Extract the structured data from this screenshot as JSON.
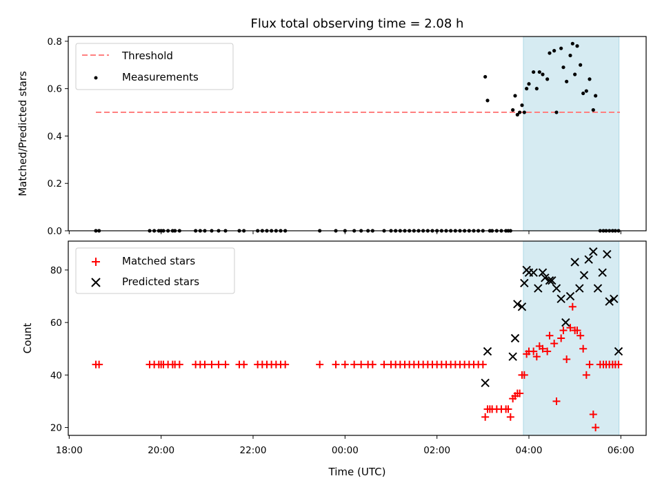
{
  "chart_data": [
    {
      "type": "scatter",
      "title": "Flux total observing time = 2.08 h",
      "xlabel": "",
      "ylabel": "Matched/Predicted stars",
      "ylim": [
        0,
        0.82
      ],
      "yticks": [
        0.0,
        0.2,
        0.4,
        0.6,
        0.8
      ],
      "ytick_labels": [
        "0.0",
        "0.2",
        "0.4",
        "0.6",
        "0.8"
      ],
      "shaded_span_hours": [
        27.88,
        29.96
      ],
      "shade_color": "#add8e6",
      "legend_position": "upper-left",
      "threshold": {
        "name": "Threshold",
        "value": 0.5,
        "x_range": [
          18.58,
          29.98
        ],
        "color": "#ff7f7f",
        "style": "dashed"
      },
      "series": [
        {
          "name": "Measurements",
          "marker": "dot",
          "color": "#000000",
          "x": [
            18.58,
            18.65,
            19.75,
            19.85,
            19.95,
            20.0,
            20.05,
            20.15,
            20.25,
            20.3,
            20.4,
            20.75,
            20.85,
            20.95,
            21.1,
            21.25,
            21.4,
            21.7,
            21.8,
            22.1,
            22.2,
            22.3,
            22.4,
            22.5,
            22.6,
            22.7,
            23.45,
            23.8,
            24.0,
            24.2,
            24.35,
            24.5,
            24.6,
            24.85,
            25.0,
            25.1,
            25.2,
            25.3,
            25.4,
            25.5,
            25.6,
            25.7,
            25.8,
            25.9,
            26.0,
            26.1,
            26.2,
            26.3,
            26.4,
            26.5,
            26.6,
            26.7,
            26.8,
            26.9,
            27.0,
            27.05,
            27.1,
            27.15,
            27.2,
            27.3,
            27.4,
            27.5,
            27.55,
            27.6,
            27.65,
            27.7,
            27.75,
            27.8,
            27.85,
            27.9,
            27.95,
            28.0,
            28.1,
            28.17,
            28.23,
            28.3,
            28.4,
            28.45,
            28.55,
            28.6,
            28.7,
            28.75,
            28.82,
            28.9,
            28.95,
            29.0,
            29.05,
            29.12,
            29.18,
            29.25,
            29.32,
            29.4,
            29.45,
            29.55,
            29.62,
            29.68,
            29.75,
            29.82,
            29.88,
            29.95
          ],
          "y": [
            0,
            0,
            0,
            0,
            0,
            0,
            0,
            0,
            0,
            0,
            0,
            0,
            0,
            0,
            0,
            0,
            0,
            0,
            0,
            0,
            0,
            0,
            0,
            0,
            0,
            0,
            0,
            0,
            0,
            0,
            0,
            0,
            0,
            0,
            0,
            0,
            0,
            0,
            0,
            0,
            0,
            0,
            0,
            0,
            0,
            0,
            0,
            0,
            0,
            0,
            0,
            0,
            0,
            0,
            0,
            0.65,
            0.55,
            0,
            0,
            0,
            0,
            0,
            0,
            0,
            0.51,
            0.57,
            0.49,
            0.5,
            0.53,
            0.5,
            0.6,
            0.62,
            0.67,
            0.6,
            0.67,
            0.66,
            0.64,
            0.75,
            0.76,
            0.5,
            0.77,
            0.69,
            0.63,
            0.74,
            0.79,
            0.66,
            0.78,
            0.7,
            0.58,
            0.59,
            0.64,
            0.51,
            0.57,
            0,
            0,
            0,
            0,
            0,
            0,
            0
          ]
        }
      ]
    },
    {
      "type": "scatter",
      "title": "",
      "xlabel": "Time (UTC)",
      "ylabel": "Count",
      "ylim": [
        17,
        91
      ],
      "yticks": [
        20,
        40,
        60,
        80
      ],
      "ytick_labels": [
        "20",
        "40",
        "60",
        "80"
      ],
      "xlim_hours": [
        17.98,
        30.55
      ],
      "xticks_hours": [
        18,
        20,
        22,
        24,
        26,
        28,
        30
      ],
      "xtick_labels": [
        "18:00",
        "20:00",
        "22:00",
        "00:00",
        "02:00",
        "04:00",
        "06:00"
      ],
      "shaded_span_hours": [
        27.88,
        29.96
      ],
      "legend_position": "upper-left",
      "series": [
        {
          "name": "Matched stars",
          "marker": "plus",
          "color": "#ff0000",
          "x": [
            18.58,
            18.65,
            19.75,
            19.85,
            19.95,
            20.0,
            20.05,
            20.15,
            20.25,
            20.3,
            20.4,
            20.75,
            20.85,
            20.95,
            21.1,
            21.25,
            21.4,
            21.7,
            21.8,
            22.1,
            22.2,
            22.3,
            22.4,
            22.5,
            22.6,
            22.7,
            23.45,
            23.8,
            24.0,
            24.2,
            24.35,
            24.5,
            24.6,
            24.85,
            25.0,
            25.1,
            25.2,
            25.3,
            25.4,
            25.5,
            25.6,
            25.7,
            25.8,
            25.9,
            26.0,
            26.1,
            26.2,
            26.3,
            26.4,
            26.5,
            26.6,
            26.7,
            26.8,
            26.9,
            27.0,
            27.05,
            27.1,
            27.15,
            27.2,
            27.3,
            27.4,
            27.5,
            27.55,
            27.6,
            27.65,
            27.7,
            27.75,
            27.8,
            27.85,
            27.9,
            27.95,
            28.0,
            28.1,
            28.17,
            28.23,
            28.3,
            28.4,
            28.45,
            28.55,
            28.6,
            28.7,
            28.75,
            28.82,
            28.9,
            28.95,
            29.0,
            29.05,
            29.12,
            29.18,
            29.25,
            29.32,
            29.4,
            29.45,
            29.55,
            29.62,
            29.68,
            29.75,
            29.82,
            29.88,
            29.95
          ],
          "y": [
            44,
            44,
            44,
            44,
            44,
            44,
            44,
            44,
            44,
            44,
            44,
            44,
            44,
            44,
            44,
            44,
            44,
            44,
            44,
            44,
            44,
            44,
            44,
            44,
            44,
            44,
            44,
            44,
            44,
            44,
            44,
            44,
            44,
            44,
            44,
            44,
            44,
            44,
            44,
            44,
            44,
            44,
            44,
            44,
            44,
            44,
            44,
            44,
            44,
            44,
            44,
            44,
            44,
            44,
            44,
            24,
            27,
            27,
            27,
            27,
            27,
            27,
            27,
            24,
            31,
            32,
            33,
            33,
            40,
            40,
            48,
            49,
            49,
            47,
            51,
            50,
            49,
            55,
            52,
            30,
            54,
            57,
            46,
            58,
            66,
            57,
            57,
            55,
            50,
            40,
            44,
            25,
            20,
            44,
            44,
            44,
            44,
            44,
            44,
            44
          ]
        },
        {
          "name": "Predicted stars",
          "marker": "x",
          "color": "#000000",
          "x": [
            27.05,
            27.1,
            27.65,
            27.7,
            27.75,
            27.85,
            27.9,
            27.95,
            28.0,
            28.1,
            28.2,
            28.3,
            28.35,
            28.45,
            28.5,
            28.6,
            28.7,
            28.8,
            28.9,
            29.0,
            29.1,
            29.2,
            29.3,
            29.4,
            29.5,
            29.6,
            29.7,
            29.75,
            29.85,
            29.95
          ],
          "y": [
            37,
            49,
            47,
            54,
            67,
            66,
            75,
            80,
            79,
            79,
            73,
            79,
            77,
            76,
            76,
            73,
            69,
            60,
            70,
            83,
            73,
            78,
            84,
            87,
            73,
            79,
            86,
            68,
            69,
            49
          ]
        }
      ]
    }
  ]
}
